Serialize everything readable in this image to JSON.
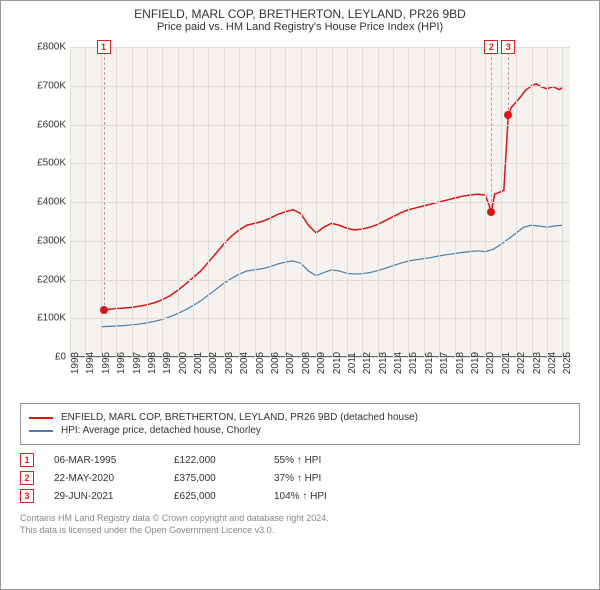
{
  "title": "ENFIELD, MARL COP, BRETHERTON, LEYLAND, PR26 9BD",
  "subtitle": "Price paid vs. HM Land Registry's House Price Index (HPI)",
  "chart": {
    "type": "line",
    "background_color": "#f5f2f0",
    "grid_color": "#e0dcd8",
    "axis_color": "#666666",
    "x_years": [
      1993,
      1994,
      1995,
      1996,
      1997,
      1998,
      1999,
      2000,
      2001,
      2002,
      2003,
      2004,
      2005,
      2006,
      2007,
      2008,
      2009,
      2010,
      2011,
      2012,
      2013,
      2014,
      2015,
      2016,
      2017,
      2018,
      2019,
      2020,
      2021,
      2022,
      2023,
      2024,
      2025
    ],
    "y_ticks": [
      0,
      100000,
      200000,
      300000,
      400000,
      500000,
      600000,
      700000,
      800000
    ],
    "y_tick_labels": [
      "£0",
      "£100K",
      "£200K",
      "£300K",
      "£400K",
      "£500K",
      "£600K",
      "£700K",
      "£800K"
    ],
    "ylim": [
      0,
      800000
    ],
    "xlim": [
      1993,
      2025.5
    ],
    "label_fontsize": 10,
    "series": [
      {
        "name": "ENFIELD, MARL COP, BRETHERTON, LEYLAND, PR26 9BD (detached house)",
        "color": "#dc1414",
        "line_width": 1.5,
        "points": [
          [
            1995.18,
            122000
          ],
          [
            1995.5,
            123000
          ],
          [
            1996,
            125000
          ],
          [
            1996.5,
            126000
          ],
          [
            1997,
            128000
          ],
          [
            1997.5,
            131000
          ],
          [
            1998,
            135000
          ],
          [
            1998.5,
            140000
          ],
          [
            1999,
            148000
          ],
          [
            1999.5,
            158000
          ],
          [
            2000,
            172000
          ],
          [
            2000.5,
            188000
          ],
          [
            2001,
            205000
          ],
          [
            2001.5,
            222000
          ],
          [
            2002,
            245000
          ],
          [
            2002.5,
            268000
          ],
          [
            2003,
            292000
          ],
          [
            2003.5,
            312000
          ],
          [
            2004,
            328000
          ],
          [
            2004.5,
            340000
          ],
          [
            2005,
            345000
          ],
          [
            2005.5,
            350000
          ],
          [
            2006,
            358000
          ],
          [
            2006.5,
            368000
          ],
          [
            2007,
            375000
          ],
          [
            2007.5,
            380000
          ],
          [
            2008,
            370000
          ],
          [
            2008.5,
            340000
          ],
          [
            2009,
            320000
          ],
          [
            2009.5,
            335000
          ],
          [
            2010,
            345000
          ],
          [
            2010.5,
            340000
          ],
          [
            2011,
            332000
          ],
          [
            2011.5,
            328000
          ],
          [
            2012,
            330000
          ],
          [
            2012.5,
            335000
          ],
          [
            2013,
            342000
          ],
          [
            2013.5,
            352000
          ],
          [
            2014,
            362000
          ],
          [
            2014.5,
            372000
          ],
          [
            2015,
            380000
          ],
          [
            2015.5,
            385000
          ],
          [
            2016,
            390000
          ],
          [
            2016.5,
            395000
          ],
          [
            2017,
            400000
          ],
          [
            2017.5,
            405000
          ],
          [
            2018,
            410000
          ],
          [
            2018.5,
            415000
          ],
          [
            2019,
            418000
          ],
          [
            2019.5,
            420000
          ],
          [
            2020,
            418000
          ],
          [
            2020.39,
            375000
          ],
          [
            2020.6,
            420000
          ],
          [
            2020.9,
            425000
          ],
          [
            2021.2,
            430000
          ],
          [
            2021.49,
            625000
          ],
          [
            2021.7,
            645000
          ],
          [
            2022,
            658000
          ],
          [
            2022.3,
            672000
          ],
          [
            2022.6,
            688000
          ],
          [
            2023,
            700000
          ],
          [
            2023.3,
            705000
          ],
          [
            2023.6,
            698000
          ],
          [
            2024,
            692000
          ],
          [
            2024.4,
            698000
          ],
          [
            2024.8,
            690000
          ],
          [
            2025,
            695000
          ]
        ]
      },
      {
        "name": "HPI: Average price, detached house, Chorley",
        "color": "#4a7fb0",
        "line_width": 1.2,
        "points": [
          [
            1995,
            78000
          ],
          [
            1995.5,
            79000
          ],
          [
            1996,
            80000
          ],
          [
            1996.5,
            81000
          ],
          [
            1997,
            83000
          ],
          [
            1997.5,
            85000
          ],
          [
            1998,
            88000
          ],
          [
            1998.5,
            92000
          ],
          [
            1999,
            97000
          ],
          [
            1999.5,
            104000
          ],
          [
            2000,
            112000
          ],
          [
            2000.5,
            122000
          ],
          [
            2001,
            133000
          ],
          [
            2001.5,
            145000
          ],
          [
            2002,
            160000
          ],
          [
            2002.5,
            175000
          ],
          [
            2003,
            190000
          ],
          [
            2003.5,
            203000
          ],
          [
            2004,
            214000
          ],
          [
            2004.5,
            222000
          ],
          [
            2005,
            225000
          ],
          [
            2005.5,
            228000
          ],
          [
            2006,
            233000
          ],
          [
            2006.5,
            240000
          ],
          [
            2007,
            245000
          ],
          [
            2007.5,
            248000
          ],
          [
            2008,
            242000
          ],
          [
            2008.5,
            222000
          ],
          [
            2009,
            210000
          ],
          [
            2009.5,
            218000
          ],
          [
            2010,
            225000
          ],
          [
            2010.5,
            222000
          ],
          [
            2011,
            216000
          ],
          [
            2011.5,
            214000
          ],
          [
            2012,
            215000
          ],
          [
            2012.5,
            218000
          ],
          [
            2013,
            223000
          ],
          [
            2013.5,
            229000
          ],
          [
            2014,
            236000
          ],
          [
            2014.5,
            242000
          ],
          [
            2015,
            248000
          ],
          [
            2015.5,
            251000
          ],
          [
            2016,
            254000
          ],
          [
            2016.5,
            257000
          ],
          [
            2017,
            261000
          ],
          [
            2017.5,
            264000
          ],
          [
            2018,
            267000
          ],
          [
            2018.5,
            270000
          ],
          [
            2019,
            272000
          ],
          [
            2019.5,
            274000
          ],
          [
            2020,
            272000
          ],
          [
            2020.5,
            278000
          ],
          [
            2021,
            290000
          ],
          [
            2021.5,
            305000
          ],
          [
            2022,
            320000
          ],
          [
            2022.5,
            335000
          ],
          [
            2023,
            340000
          ],
          [
            2023.5,
            338000
          ],
          [
            2024,
            335000
          ],
          [
            2024.5,
            338000
          ],
          [
            2025,
            340000
          ]
        ]
      }
    ],
    "markers": [
      {
        "n": "1",
        "x": 1995.18,
        "y": 122000,
        "dot_color": "#dc1414"
      },
      {
        "n": "2",
        "x": 2020.39,
        "y": 375000,
        "dot_color": "#dc1414"
      },
      {
        "n": "3",
        "x": 2021.49,
        "y": 625000,
        "dot_color": "#dc1414"
      }
    ]
  },
  "legend": {
    "items": [
      {
        "color": "#dc1414",
        "label": "ENFIELD, MARL COP, BRETHERTON, LEYLAND, PR26 9BD (detached house)"
      },
      {
        "color": "#4a7fb0",
        "label": "HPI: Average price, detached house, Chorley"
      }
    ]
  },
  "sales": [
    {
      "n": "1",
      "date": "06-MAR-1995",
      "price": "£122,000",
      "delta": "55% ↑ HPI"
    },
    {
      "n": "2",
      "date": "22-MAY-2020",
      "price": "£375,000",
      "delta": "37% ↑ HPI"
    },
    {
      "n": "3",
      "date": "29-JUN-2021",
      "price": "£625,000",
      "delta": "104% ↑ HPI"
    }
  ],
  "attribution": {
    "line1": "Contains HM Land Registry data © Crown copyright and database right 2024.",
    "line2": "This data is licensed under the Open Government Licence v3.0."
  }
}
